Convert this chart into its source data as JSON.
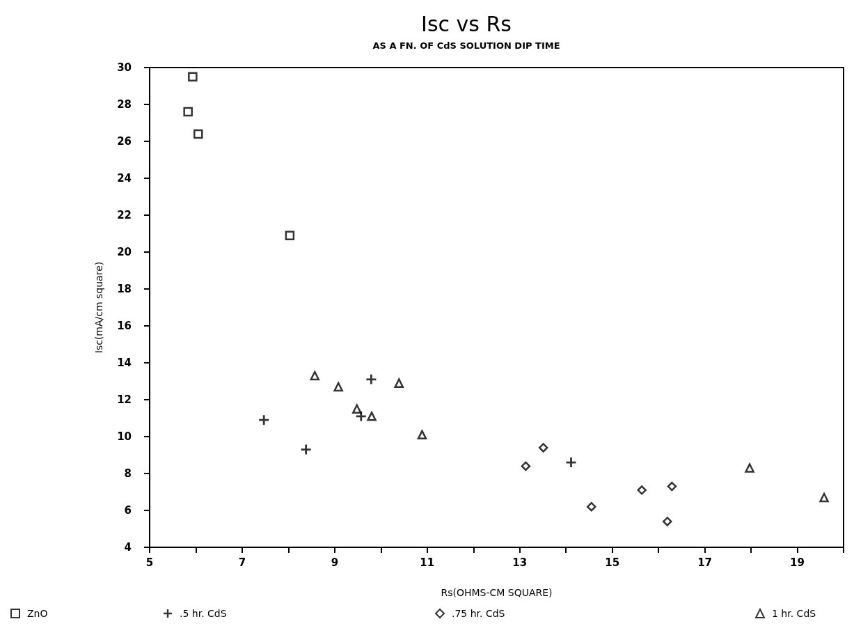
{
  "chart_data": {
    "type": "scatter",
    "title": "Isc vs Rs",
    "subtitle": "AS A FN. OF CdS SOLUTION DIP TIME",
    "xlabel": "Rs(OHMS-CM SQUARE)",
    "ylabel": "Isc(mA/cm square)",
    "xlim": [
      5,
      20
    ],
    "xticks": [
      5,
      {
        "value": 6,
        "label": null
      },
      7,
      {
        "value": 8,
        "label": null
      },
      9,
      {
        "value": 10,
        "label": null
      },
      11,
      {
        "value": 12,
        "label": null
      },
      13,
      {
        "value": 14,
        "label": null
      },
      15,
      {
        "value": 16,
        "label": null
      },
      17,
      {
        "value": 18,
        "label": null
      },
      19,
      {
        "value": 20,
        "label": null
      }
    ],
    "ylim": [
      4,
      30
    ],
    "yticks": [
      4,
      6,
      8,
      10,
      12,
      14,
      16,
      18,
      20,
      22,
      24,
      26,
      28,
      30
    ],
    "grid": false,
    "legend": "bottom",
    "series": [
      {
        "name": "ZnO",
        "color": "#000000",
        "marker": "square",
        "x": [
          5.93,
          5.83,
          6.05,
          8.03
        ],
        "values": [
          29.5,
          27.6,
          26.4,
          20.9
        ]
      },
      {
        "name": ".5 hr. CdS",
        "color": "#000000",
        "marker": "cross",
        "x": [
          7.47,
          8.38,
          9.79,
          9.57,
          14.11
        ],
        "values": [
          10.9,
          9.3,
          13.1,
          11.1,
          8.6
        ]
      },
      {
        "name": ".75 hr. CdS",
        "color": "#000000",
        "marker": "diamond",
        "x": [
          13.13,
          13.51,
          14.55,
          15.64,
          16.29,
          16.19
        ],
        "values": [
          8.4,
          9.4,
          6.2,
          7.1,
          7.3,
          5.4
        ]
      },
      {
        "name": "1 hr. CdS",
        "color": "#000000",
        "marker": "triangle",
        "x": [
          8.57,
          9.08,
          10.39,
          9.48,
          9.8,
          10.89,
          17.97,
          19.58
        ],
        "values": [
          13.3,
          12.7,
          12.9,
          11.5,
          11.1,
          10.1,
          8.3,
          6.7
        ]
      }
    ]
  }
}
